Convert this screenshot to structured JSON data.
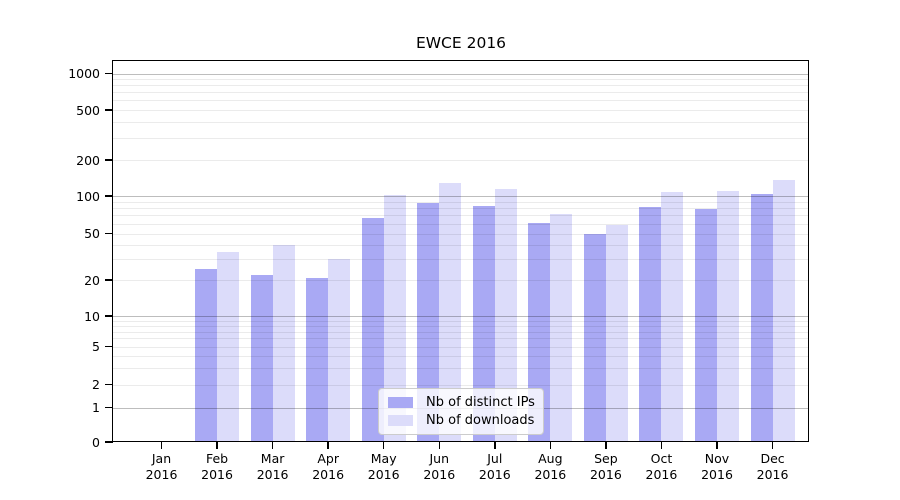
{
  "title": "EWCE 2016",
  "chart_data": {
    "type": "bar",
    "title": "EWCE 2016",
    "categories": [
      {
        "month": "Jan",
        "year": "2016"
      },
      {
        "month": "Feb",
        "year": "2016"
      },
      {
        "month": "Mar",
        "year": "2016"
      },
      {
        "month": "Apr",
        "year": "2016"
      },
      {
        "month": "May",
        "year": "2016"
      },
      {
        "month": "Jun",
        "year": "2016"
      },
      {
        "month": "Jul",
        "year": "2016"
      },
      {
        "month": "Aug",
        "year": "2016"
      },
      {
        "month": "Sep",
        "year": "2016"
      },
      {
        "month": "Oct",
        "year": "2016"
      },
      {
        "month": "Nov",
        "year": "2016"
      },
      {
        "month": "Dec",
        "year": "2016"
      }
    ],
    "series": [
      {
        "name": "Nb of distinct IPs",
        "color": "#a9a9f4",
        "values": [
          0,
          25,
          22,
          21,
          66,
          88,
          83,
          61,
          50,
          82,
          79,
          103
        ]
      },
      {
        "name": "Nb of downloads",
        "color": "#dcdcfa",
        "values": [
          0,
          35,
          40,
          30,
          101,
          128,
          114,
          72,
          58,
          109,
          110,
          136
        ]
      }
    ],
    "y_axis": {
      "ticks": [
        0,
        1,
        2,
        5,
        10,
        20,
        50,
        100,
        200,
        500,
        1000
      ],
      "scale": "log-like (symlog)",
      "range_top": 1300
    },
    "x_axis": {
      "label": ""
    },
    "legend": {
      "position": "bottom-center"
    },
    "grid": true,
    "colors": {
      "major_gridline": "rgba(0,0,0,0.26)",
      "minor_gridline": "rgba(0,0,0,0.08)",
      "axis": "#000000",
      "background": "#ffffff"
    }
  }
}
